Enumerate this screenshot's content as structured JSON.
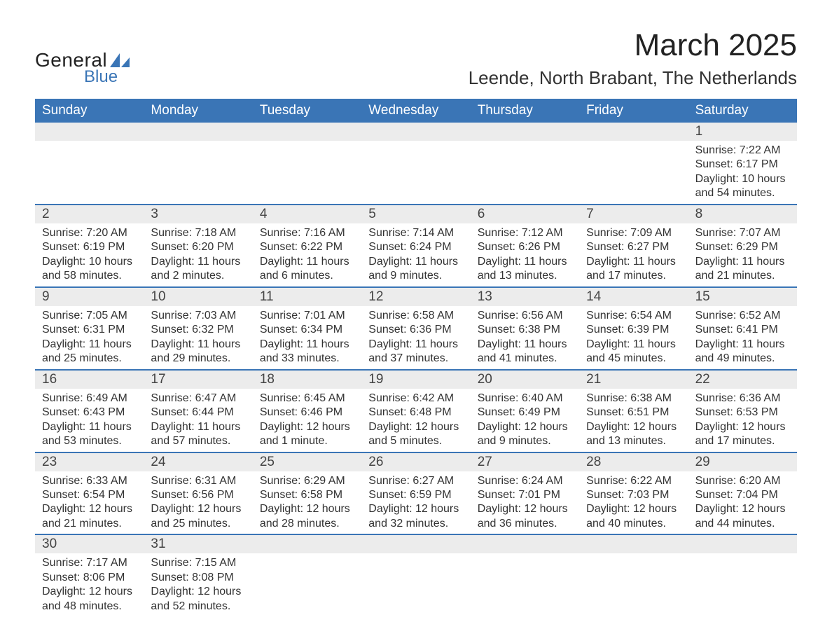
{
  "brand": {
    "name_part1": "General",
    "name_part2": "Blue",
    "accent_color": "#3a75b6"
  },
  "title": {
    "month_year": "March 2025",
    "location": "Leende, North Brabant, The Netherlands"
  },
  "colors": {
    "header_bg": "#3a75b6",
    "header_text": "#ffffff",
    "daynum_bg": "#ececec",
    "row_border": "#3a75b6",
    "body_text": "#333333"
  },
  "daynames": [
    "Sunday",
    "Monday",
    "Tuesday",
    "Wednesday",
    "Thursday",
    "Friday",
    "Saturday"
  ],
  "weeks": [
    [
      {
        "day": "",
        "sunrise": "",
        "sunset": "",
        "daylight1": "",
        "daylight2": ""
      },
      {
        "day": "",
        "sunrise": "",
        "sunset": "",
        "daylight1": "",
        "daylight2": ""
      },
      {
        "day": "",
        "sunrise": "",
        "sunset": "",
        "daylight1": "",
        "daylight2": ""
      },
      {
        "day": "",
        "sunrise": "",
        "sunset": "",
        "daylight1": "",
        "daylight2": ""
      },
      {
        "day": "",
        "sunrise": "",
        "sunset": "",
        "daylight1": "",
        "daylight2": ""
      },
      {
        "day": "",
        "sunrise": "",
        "sunset": "",
        "daylight1": "",
        "daylight2": ""
      },
      {
        "day": "1",
        "sunrise": "Sunrise: 7:22 AM",
        "sunset": "Sunset: 6:17 PM",
        "daylight1": "Daylight: 10 hours",
        "daylight2": "and 54 minutes."
      }
    ],
    [
      {
        "day": "2",
        "sunrise": "Sunrise: 7:20 AM",
        "sunset": "Sunset: 6:19 PM",
        "daylight1": "Daylight: 10 hours",
        "daylight2": "and 58 minutes."
      },
      {
        "day": "3",
        "sunrise": "Sunrise: 7:18 AM",
        "sunset": "Sunset: 6:20 PM",
        "daylight1": "Daylight: 11 hours",
        "daylight2": "and 2 minutes."
      },
      {
        "day": "4",
        "sunrise": "Sunrise: 7:16 AM",
        "sunset": "Sunset: 6:22 PM",
        "daylight1": "Daylight: 11 hours",
        "daylight2": "and 6 minutes."
      },
      {
        "day": "5",
        "sunrise": "Sunrise: 7:14 AM",
        "sunset": "Sunset: 6:24 PM",
        "daylight1": "Daylight: 11 hours",
        "daylight2": "and 9 minutes."
      },
      {
        "day": "6",
        "sunrise": "Sunrise: 7:12 AM",
        "sunset": "Sunset: 6:26 PM",
        "daylight1": "Daylight: 11 hours",
        "daylight2": "and 13 minutes."
      },
      {
        "day": "7",
        "sunrise": "Sunrise: 7:09 AM",
        "sunset": "Sunset: 6:27 PM",
        "daylight1": "Daylight: 11 hours",
        "daylight2": "and 17 minutes."
      },
      {
        "day": "8",
        "sunrise": "Sunrise: 7:07 AM",
        "sunset": "Sunset: 6:29 PM",
        "daylight1": "Daylight: 11 hours",
        "daylight2": "and 21 minutes."
      }
    ],
    [
      {
        "day": "9",
        "sunrise": "Sunrise: 7:05 AM",
        "sunset": "Sunset: 6:31 PM",
        "daylight1": "Daylight: 11 hours",
        "daylight2": "and 25 minutes."
      },
      {
        "day": "10",
        "sunrise": "Sunrise: 7:03 AM",
        "sunset": "Sunset: 6:32 PM",
        "daylight1": "Daylight: 11 hours",
        "daylight2": "and 29 minutes."
      },
      {
        "day": "11",
        "sunrise": "Sunrise: 7:01 AM",
        "sunset": "Sunset: 6:34 PM",
        "daylight1": "Daylight: 11 hours",
        "daylight2": "and 33 minutes."
      },
      {
        "day": "12",
        "sunrise": "Sunrise: 6:58 AM",
        "sunset": "Sunset: 6:36 PM",
        "daylight1": "Daylight: 11 hours",
        "daylight2": "and 37 minutes."
      },
      {
        "day": "13",
        "sunrise": "Sunrise: 6:56 AM",
        "sunset": "Sunset: 6:38 PM",
        "daylight1": "Daylight: 11 hours",
        "daylight2": "and 41 minutes."
      },
      {
        "day": "14",
        "sunrise": "Sunrise: 6:54 AM",
        "sunset": "Sunset: 6:39 PM",
        "daylight1": "Daylight: 11 hours",
        "daylight2": "and 45 minutes."
      },
      {
        "day": "15",
        "sunrise": "Sunrise: 6:52 AM",
        "sunset": "Sunset: 6:41 PM",
        "daylight1": "Daylight: 11 hours",
        "daylight2": "and 49 minutes."
      }
    ],
    [
      {
        "day": "16",
        "sunrise": "Sunrise: 6:49 AM",
        "sunset": "Sunset: 6:43 PM",
        "daylight1": "Daylight: 11 hours",
        "daylight2": "and 53 minutes."
      },
      {
        "day": "17",
        "sunrise": "Sunrise: 6:47 AM",
        "sunset": "Sunset: 6:44 PM",
        "daylight1": "Daylight: 11 hours",
        "daylight2": "and 57 minutes."
      },
      {
        "day": "18",
        "sunrise": "Sunrise: 6:45 AM",
        "sunset": "Sunset: 6:46 PM",
        "daylight1": "Daylight: 12 hours",
        "daylight2": "and 1 minute."
      },
      {
        "day": "19",
        "sunrise": "Sunrise: 6:42 AM",
        "sunset": "Sunset: 6:48 PM",
        "daylight1": "Daylight: 12 hours",
        "daylight2": "and 5 minutes."
      },
      {
        "day": "20",
        "sunrise": "Sunrise: 6:40 AM",
        "sunset": "Sunset: 6:49 PM",
        "daylight1": "Daylight: 12 hours",
        "daylight2": "and 9 minutes."
      },
      {
        "day": "21",
        "sunrise": "Sunrise: 6:38 AM",
        "sunset": "Sunset: 6:51 PM",
        "daylight1": "Daylight: 12 hours",
        "daylight2": "and 13 minutes."
      },
      {
        "day": "22",
        "sunrise": "Sunrise: 6:36 AM",
        "sunset": "Sunset: 6:53 PM",
        "daylight1": "Daylight: 12 hours",
        "daylight2": "and 17 minutes."
      }
    ],
    [
      {
        "day": "23",
        "sunrise": "Sunrise: 6:33 AM",
        "sunset": "Sunset: 6:54 PM",
        "daylight1": "Daylight: 12 hours",
        "daylight2": "and 21 minutes."
      },
      {
        "day": "24",
        "sunrise": "Sunrise: 6:31 AM",
        "sunset": "Sunset: 6:56 PM",
        "daylight1": "Daylight: 12 hours",
        "daylight2": "and 25 minutes."
      },
      {
        "day": "25",
        "sunrise": "Sunrise: 6:29 AM",
        "sunset": "Sunset: 6:58 PM",
        "daylight1": "Daylight: 12 hours",
        "daylight2": "and 28 minutes."
      },
      {
        "day": "26",
        "sunrise": "Sunrise: 6:27 AM",
        "sunset": "Sunset: 6:59 PM",
        "daylight1": "Daylight: 12 hours",
        "daylight2": "and 32 minutes."
      },
      {
        "day": "27",
        "sunrise": "Sunrise: 6:24 AM",
        "sunset": "Sunset: 7:01 PM",
        "daylight1": "Daylight: 12 hours",
        "daylight2": "and 36 minutes."
      },
      {
        "day": "28",
        "sunrise": "Sunrise: 6:22 AM",
        "sunset": "Sunset: 7:03 PM",
        "daylight1": "Daylight: 12 hours",
        "daylight2": "and 40 minutes."
      },
      {
        "day": "29",
        "sunrise": "Sunrise: 6:20 AM",
        "sunset": "Sunset: 7:04 PM",
        "daylight1": "Daylight: 12 hours",
        "daylight2": "and 44 minutes."
      }
    ],
    [
      {
        "day": "30",
        "sunrise": "Sunrise: 7:17 AM",
        "sunset": "Sunset: 8:06 PM",
        "daylight1": "Daylight: 12 hours",
        "daylight2": "and 48 minutes."
      },
      {
        "day": "31",
        "sunrise": "Sunrise: 7:15 AM",
        "sunset": "Sunset: 8:08 PM",
        "daylight1": "Daylight: 12 hours",
        "daylight2": "and 52 minutes."
      },
      {
        "day": "",
        "sunrise": "",
        "sunset": "",
        "daylight1": "",
        "daylight2": ""
      },
      {
        "day": "",
        "sunrise": "",
        "sunset": "",
        "daylight1": "",
        "daylight2": ""
      },
      {
        "day": "",
        "sunrise": "",
        "sunset": "",
        "daylight1": "",
        "daylight2": ""
      },
      {
        "day": "",
        "sunrise": "",
        "sunset": "",
        "daylight1": "",
        "daylight2": ""
      },
      {
        "day": "",
        "sunrise": "",
        "sunset": "",
        "daylight1": "",
        "daylight2": ""
      }
    ]
  ]
}
